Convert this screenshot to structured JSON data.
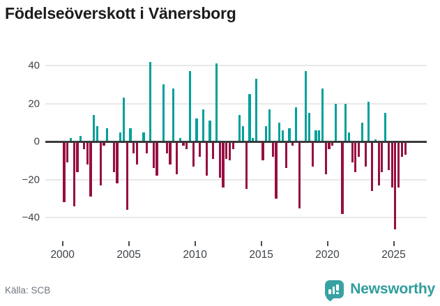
{
  "title": "Födelseöverskott i Vänersborg",
  "footer": {
    "source": "Källa: SCB",
    "brand": "Newsworthy"
  },
  "chart_data": {
    "type": "bar",
    "title": "Födelseöverskott i Vänersborg",
    "frequency": "quarterly",
    "start_year": 2000,
    "x_tick_labels": [
      "2000",
      "2005",
      "2010",
      "2015",
      "2020",
      "2025"
    ],
    "y_tick_labels": [
      "40",
      "20",
      "0",
      "−20",
      "−40"
    ],
    "y_ticks": [
      40,
      20,
      0,
      -20,
      -40
    ],
    "ylim": [
      -52,
      47
    ],
    "xlim_years": [
      1998.7,
      2027.5
    ],
    "grid": "horizontal",
    "legend": "none",
    "positive_color": "#00a09a",
    "negative_color": "#960f42",
    "series": [
      {
        "name": "Födelseöverskott",
        "quarterly_values": [
          -32,
          -11,
          2,
          -34,
          -16,
          3,
          -4,
          -12,
          -29,
          14,
          8,
          -23,
          -2,
          7,
          0,
          -16,
          -22,
          5,
          23,
          -36,
          7,
          -6,
          -12,
          0,
          5,
          -6,
          42,
          -14,
          -18,
          0,
          30,
          -6,
          -12,
          28,
          -17,
          2,
          -2,
          -4,
          37,
          -13,
          12,
          -8,
          17,
          -18,
          11,
          -9,
          41,
          -19,
          -24,
          -9,
          -10,
          -4,
          0,
          14,
          8,
          -25,
          25,
          2,
          33,
          0,
          -10,
          8,
          17,
          -8,
          -30,
          10,
          6,
          -14,
          7,
          -2,
          18,
          -35,
          0,
          37,
          15,
          -13,
          6,
          6,
          28,
          -17,
          -4,
          -2,
          20,
          0,
          -38,
          20,
          5,
          -11,
          -16,
          -8,
          10,
          -13,
          21,
          -26,
          1,
          -23,
          -16,
          15,
          -15,
          -24,
          -46,
          -24,
          -8,
          -7
        ]
      }
    ]
  }
}
